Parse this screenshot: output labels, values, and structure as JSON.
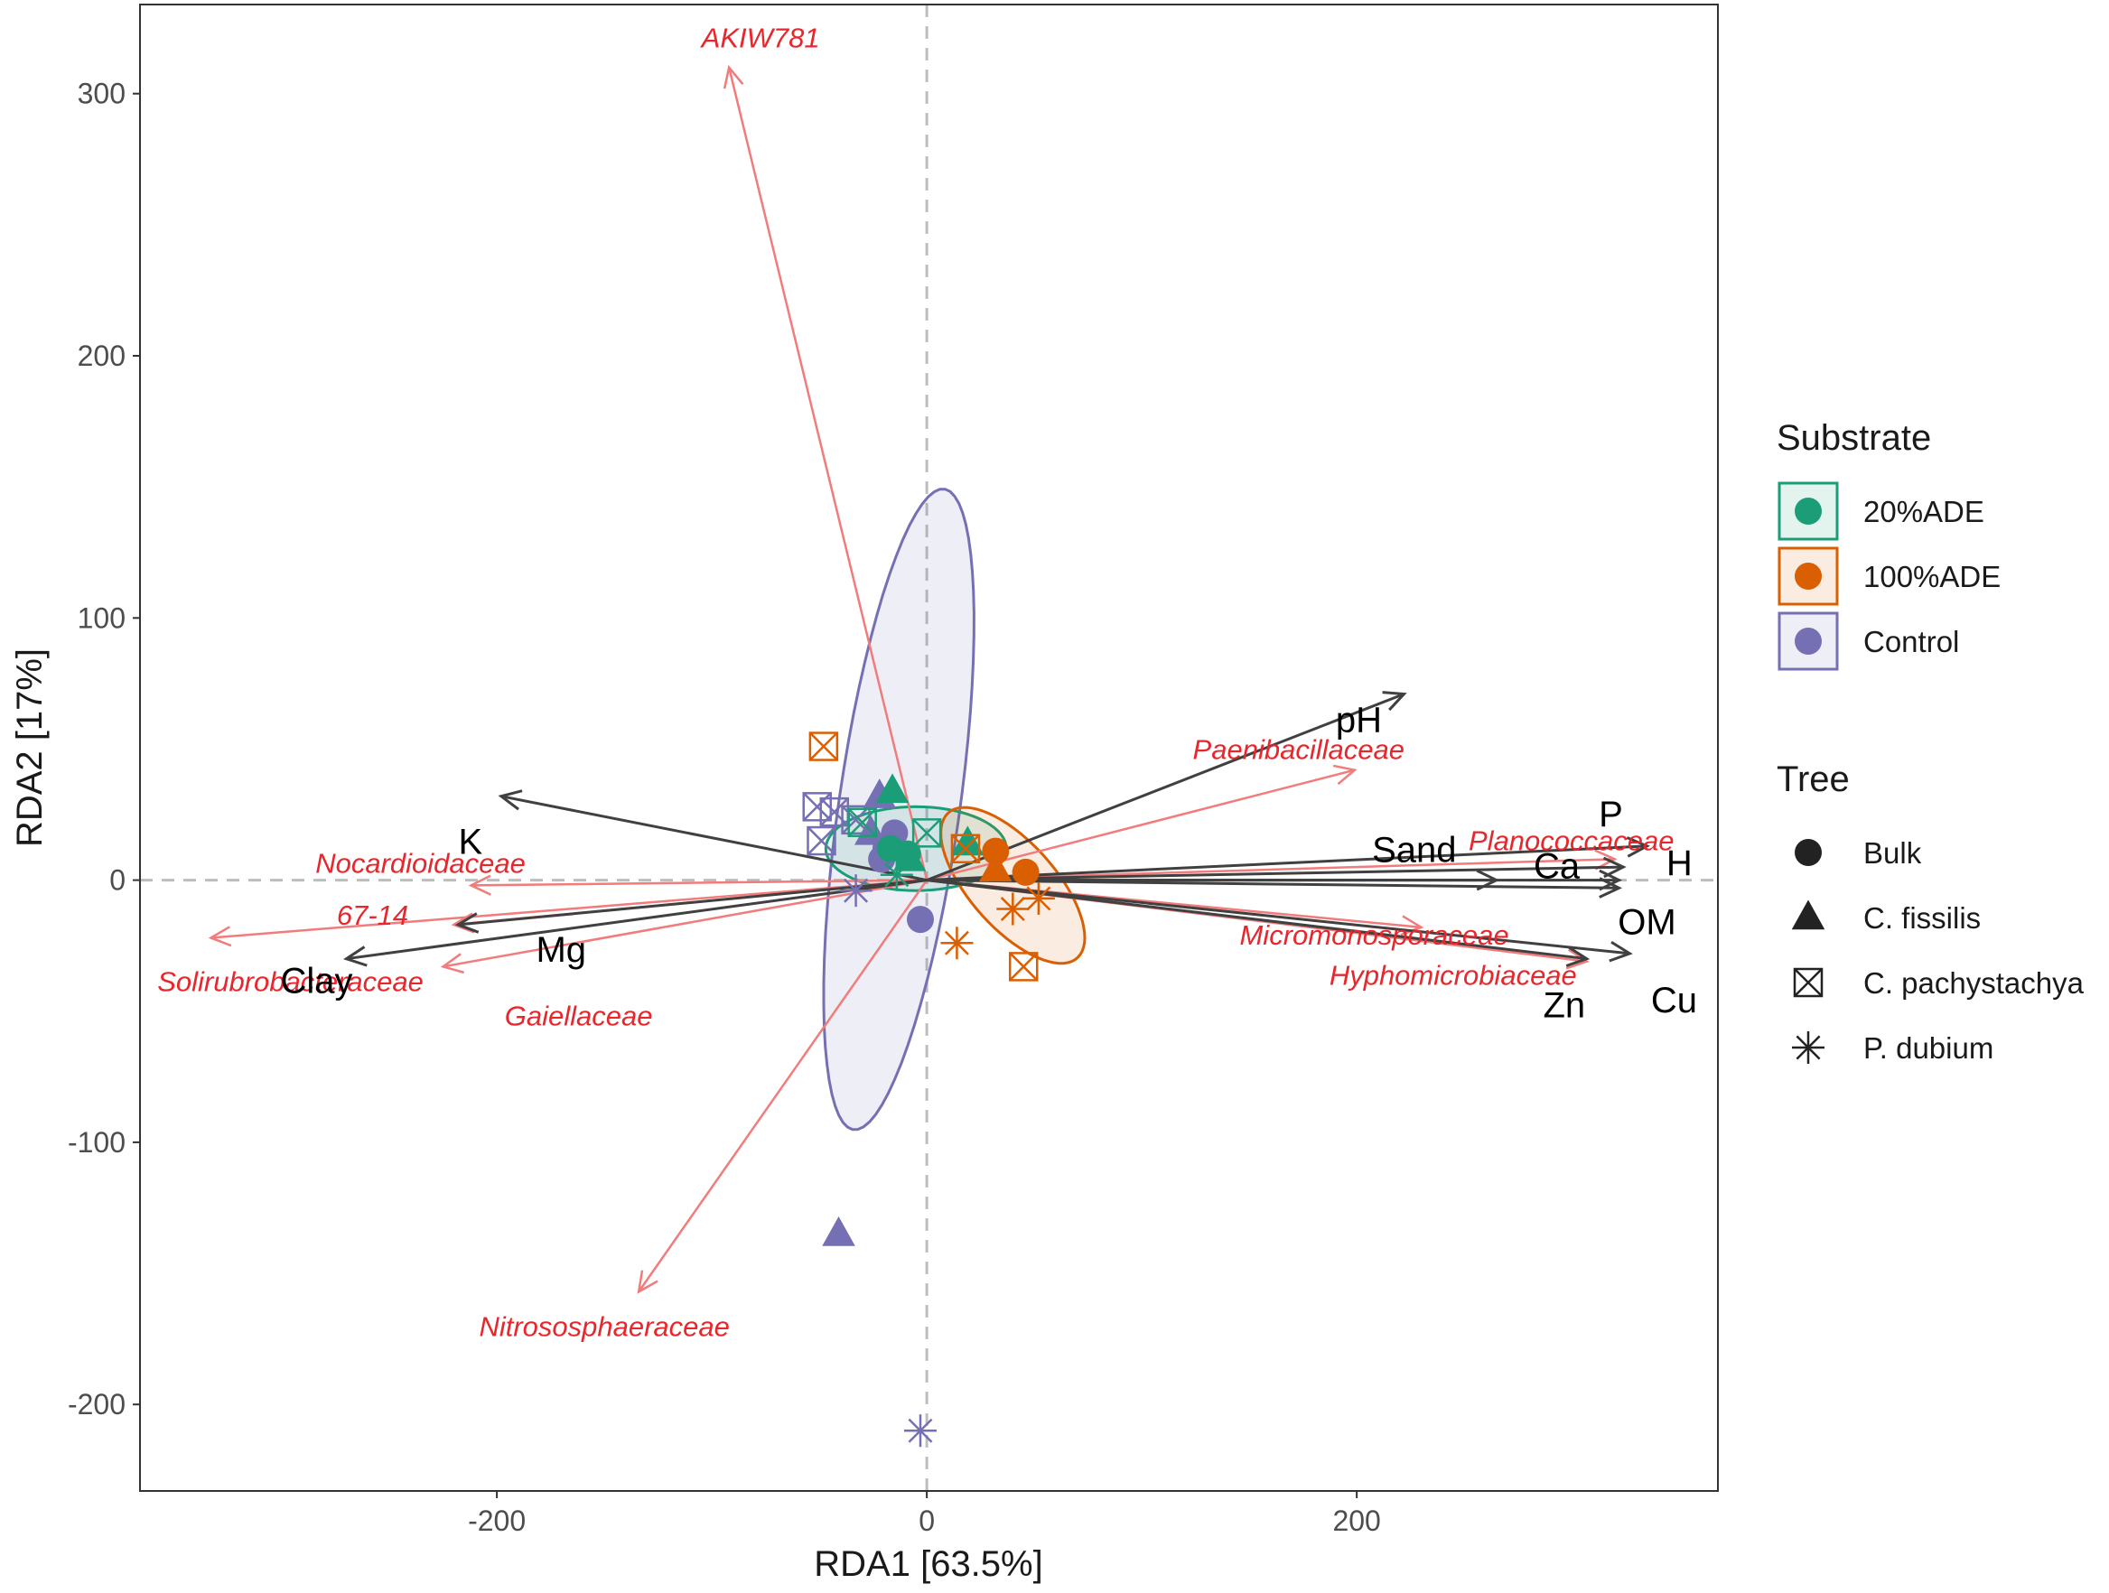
{
  "chart_data": {
    "type": "scatter",
    "subtype": "RDA triplot",
    "xlabel": "RDA1 [63.5%]",
    "ylabel": "RDA2 [17%]",
    "xlim": [
      -366,
      368
    ],
    "ylim": [
      -233,
      334
    ],
    "xticks": [
      -200,
      0,
      200
    ],
    "yticks": [
      -200,
      -100,
      0,
      100,
      200,
      300
    ],
    "reference_lines": {
      "x": 0,
      "y": 0,
      "style": "dashed"
    },
    "colors": {
      "20%ADE": "#1b9e77",
      "100%ADE": "#d95f02",
      "Control": "#7570b3",
      "env_arrow": "#404040",
      "taxa_arrow": "#f27b7b",
      "taxa_text": "#e8262c"
    },
    "env_arrows": [
      {
        "label": "pH",
        "x": 222,
        "y": 71
      },
      {
        "label": "P",
        "x": 335,
        "y": 13
      },
      {
        "label": "Sand",
        "x": 265,
        "y": 0
      },
      {
        "label": "Ca",
        "x": 322,
        "y": 0
      },
      {
        "label": "H",
        "x": 324,
        "y": 5
      },
      {
        "label": "OM",
        "x": 322,
        "y": -3
      },
      {
        "label": "Cu",
        "x": 327,
        "y": -28
      },
      {
        "label": "Zn",
        "x": 307,
        "y": -30
      },
      {
        "label": "K",
        "x": -198,
        "y": 32
      },
      {
        "label": "Mg",
        "x": -218,
        "y": -17
      },
      {
        "label": "Clay",
        "x": -270,
        "y": -30
      }
    ],
    "taxa_arrows": [
      {
        "label": "AKIW781",
        "x": -92,
        "y": 310
      },
      {
        "label": "Paenibacillaceae",
        "x": 199,
        "y": 42
      },
      {
        "label": "Planococcaceae",
        "x": 320,
        "y": 8
      },
      {
        "label": "Micromonosporaceae",
        "x": 230,
        "y": -18
      },
      {
        "label": "Hyphomicrobiaceae",
        "x": 307,
        "y": -31
      },
      {
        "label": "Nocardioidaceae",
        "x": -212,
        "y": -2
      },
      {
        "label": "67-14",
        "x": -220,
        "y": -17
      },
      {
        "label": "Solirubrobacteraceae",
        "x": -333,
        "y": -22
      },
      {
        "label": "Gaiellaceae",
        "x": -225,
        "y": -33
      },
      {
        "label": "Nitrososphaeraceae",
        "x": -134,
        "y": -157
      }
    ],
    "ellipses": [
      {
        "group": "Control",
        "cx": -13,
        "cy": 27,
        "rx": 28,
        "ry": 124,
        "angle": -10
      },
      {
        "group": "20%ADE",
        "cx": -5,
        "cy": 12,
        "rx": 42,
        "ry": 16,
        "angle": 0
      },
      {
        "group": "100%ADE",
        "cx": 40,
        "cy": -2,
        "rx": 41,
        "ry": 18,
        "angle": -40
      }
    ],
    "points": [
      {
        "substrate": "Control",
        "tree": "Bulk",
        "x": -15,
        "y": 18
      },
      {
        "substrate": "Control",
        "tree": "Bulk",
        "x": -19,
        "y": 12
      },
      {
        "substrate": "Control",
        "tree": "Bulk",
        "x": -21,
        "y": 8
      },
      {
        "substrate": "Control",
        "tree": "Bulk",
        "x": -3,
        "y": -15
      },
      {
        "substrate": "Control",
        "tree": "C. fissilis",
        "x": -22,
        "y": 32
      },
      {
        "substrate": "Control",
        "tree": "C. fissilis",
        "x": -26,
        "y": 18
      },
      {
        "substrate": "Control",
        "tree": "C. fissilis",
        "x": -41,
        "y": -135
      },
      {
        "substrate": "Control",
        "tree": "C. pachystachya",
        "x": -51,
        "y": 28
      },
      {
        "substrate": "Control",
        "tree": "C. pachystachya",
        "x": -43,
        "y": 26
      },
      {
        "substrate": "Control",
        "tree": "C. pachystachya",
        "x": -33,
        "y": 23
      },
      {
        "substrate": "Control",
        "tree": "C. pachystachya",
        "x": -49,
        "y": 15
      },
      {
        "substrate": "Control",
        "tree": "P. dubium",
        "x": -33,
        "y": -4
      },
      {
        "substrate": "Control",
        "tree": "P. dubium",
        "x": -3,
        "y": -210
      },
      {
        "substrate": "20%ADE",
        "tree": "Bulk",
        "x": -17,
        "y": 12
      },
      {
        "substrate": "20%ADE",
        "tree": "Bulk",
        "x": -9,
        "y": 10
      },
      {
        "substrate": "20%ADE",
        "tree": "C. fissilis",
        "x": -16,
        "y": 34
      },
      {
        "substrate": "20%ADE",
        "tree": "C. fissilis",
        "x": 19,
        "y": 14
      },
      {
        "substrate": "20%ADE",
        "tree": "C. fissilis",
        "x": -8,
        "y": 8
      },
      {
        "substrate": "20%ADE",
        "tree": "C. pachystachya",
        "x": 0,
        "y": 18
      },
      {
        "substrate": "20%ADE",
        "tree": "C. pachystachya",
        "x": -30,
        "y": 22
      },
      {
        "substrate": "20%ADE",
        "tree": "P. dubium",
        "x": -14,
        "y": 2
      },
      {
        "substrate": "100%ADE",
        "tree": "Bulk",
        "x": 32,
        "y": 11
      },
      {
        "substrate": "100%ADE",
        "tree": "Bulk",
        "x": 46,
        "y": 3
      },
      {
        "substrate": "100%ADE",
        "tree": "C. fissilis",
        "x": 32,
        "y": 4
      },
      {
        "substrate": "100%ADE",
        "tree": "C. pachystachya",
        "x": -48,
        "y": 51
      },
      {
        "substrate": "100%ADE",
        "tree": "C. pachystachya",
        "x": 18,
        "y": 12
      },
      {
        "substrate": "100%ADE",
        "tree": "C. pachystachya",
        "x": 45,
        "y": -33
      },
      {
        "substrate": "100%ADE",
        "tree": "P. dubium",
        "x": 14,
        "y": -24
      },
      {
        "substrate": "100%ADE",
        "tree": "P. dubium",
        "x": 52,
        "y": -7
      },
      {
        "substrate": "100%ADE",
        "tree": "P. dubium",
        "x": 40,
        "y": -11
      }
    ],
    "legend": {
      "position": "right",
      "substrate_title": "Substrate",
      "substrate_items": [
        "20%ADE",
        "100%ADE",
        "Control"
      ],
      "tree_title": "Tree",
      "tree_items": [
        {
          "label": "Bulk",
          "shape": "circle"
        },
        {
          "label": "C. fissilis",
          "shape": "triangle"
        },
        {
          "label": "C. pachystachya",
          "shape": "boxed-x"
        },
        {
          "label": "P. dubium",
          "shape": "asterisk"
        }
      ]
    }
  }
}
